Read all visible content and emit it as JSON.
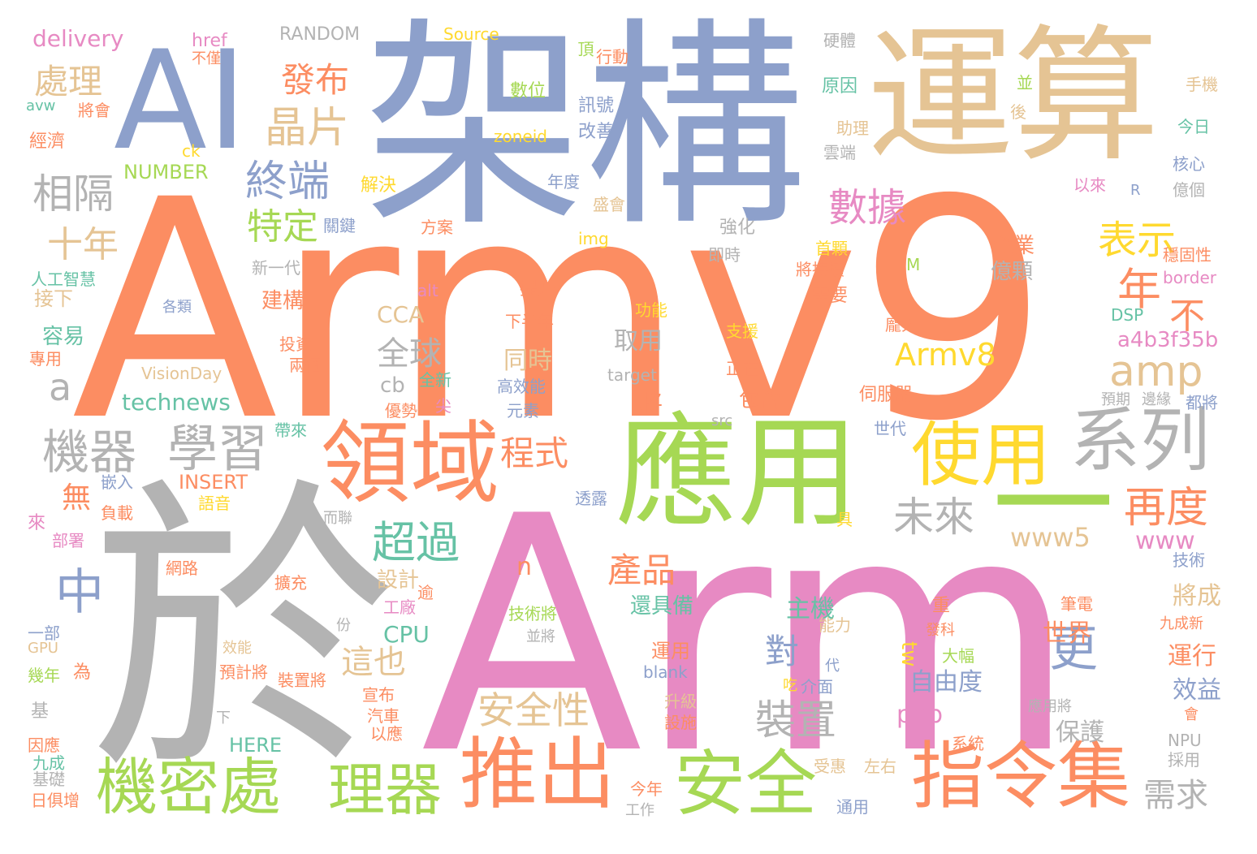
{
  "colors": {
    "orange": "#fc8d62",
    "blue": "#8da0cb",
    "pink": "#e78ac3",
    "green": "#a6d854",
    "yellow": "#ffd92f",
    "tan": "#e5c494",
    "gray": "#b3b3b3",
    "teal": "#66c2a5"
  },
  "words": [
    {
      "text": "Armv9",
      "color": "orange"
    },
    {
      "text": "Arm",
      "color": "pink"
    },
    {
      "text": "架構",
      "color": "blue"
    },
    {
      "text": "運算",
      "color": "tan"
    },
    {
      "text": "AI",
      "color": "blue"
    },
    {
      "text": "於",
      "color": "gray"
    },
    {
      "text": "應用",
      "color": "green"
    },
    {
      "text": "領域",
      "color": "orange"
    },
    {
      "text": "使用",
      "color": "yellow"
    },
    {
      "text": "系列",
      "color": "gray"
    },
    {
      "text": "一",
      "color": "green"
    },
    {
      "text": "推出",
      "color": "orange"
    },
    {
      "text": "安全",
      "color": "green"
    },
    {
      "text": "指令集",
      "color": "orange"
    },
    {
      "text": "機密處",
      "color": "green"
    },
    {
      "text": "理器",
      "color": "green"
    },
    {
      "text": "機器",
      "color": "gray"
    },
    {
      "text": "學習",
      "color": "gray"
    },
    {
      "text": "中",
      "color": "blue"
    },
    {
      "text": "數據",
      "color": "pink"
    },
    {
      "text": "終端",
      "color": "blue"
    },
    {
      "text": "晶片",
      "color": "tan"
    },
    {
      "text": "發布",
      "color": "orange"
    },
    {
      "text": "處理",
      "color": "tan"
    },
    {
      "text": "相隔",
      "color": "gray"
    },
    {
      "text": "十年",
      "color": "tan"
    },
    {
      "text": "特定",
      "color": "green"
    },
    {
      "text": "表示",
      "color": "yellow"
    },
    {
      "text": "年",
      "color": "orange"
    },
    {
      "text": "不",
      "color": "orange"
    },
    {
      "text": "amp",
      "color": "tan"
    },
    {
      "text": "Armv8",
      "color": "yellow"
    },
    {
      "text": "全球",
      "color": "gray"
    },
    {
      "text": "a",
      "color": "gray"
    },
    {
      "text": "technews",
      "color": "teal"
    },
    {
      "text": "超過",
      "color": "teal"
    },
    {
      "text": "程式",
      "color": "orange"
    },
    {
      "text": "未來",
      "color": "gray"
    },
    {
      "text": "再度",
      "color": "orange"
    },
    {
      "text": "www5",
      "color": "tan"
    },
    {
      "text": "www",
      "color": "pink"
    },
    {
      "text": "產品",
      "color": "orange"
    },
    {
      "text": "安全性",
      "color": "tan"
    },
    {
      "text": "裝置",
      "color": "gray"
    },
    {
      "text": "對",
      "color": "blue"
    },
    {
      "text": "更",
      "color": "blue"
    },
    {
      "text": "這也",
      "color": "tan"
    },
    {
      "text": "需求",
      "color": "gray"
    },
    {
      "text": "無",
      "color": "orange"
    },
    {
      "text": "CPU",
      "color": "teal"
    },
    {
      "text": "php",
      "color": "pink"
    },
    {
      "text": "tw",
      "color": "yellow"
    },
    {
      "text": "自由度",
      "color": "blue"
    },
    {
      "text": "主機",
      "color": "teal"
    },
    {
      "text": "世界",
      "color": "orange"
    },
    {
      "text": "保護",
      "color": "gray"
    },
    {
      "text": "運行",
      "color": "orange"
    },
    {
      "text": "效益",
      "color": "blue"
    },
    {
      "text": "將成",
      "color": "tan"
    },
    {
      "text": "還具備",
      "color": "teal"
    },
    {
      "text": "運用",
      "color": "orange"
    },
    {
      "text": "設計",
      "color": "tan"
    },
    {
      "text": "n",
      "color": "orange"
    },
    {
      "text": "同時",
      "color": "tan"
    },
    {
      "text": "取用",
      "color": "gray"
    },
    {
      "text": "CCA",
      "color": "tan"
    },
    {
      "text": "cb",
      "color": "gray"
    },
    {
      "text": "將",
      "color": "orange"
    },
    {
      "text": "包含",
      "color": "orange"
    },
    {
      "text": "a4b3f35b",
      "color": "pink"
    },
    {
      "text": "企業",
      "color": "orange"
    },
    {
      "text": "億顆",
      "color": "gray"
    },
    {
      "text": "容易",
      "color": "teal"
    },
    {
      "text": "接下",
      "color": "tan"
    },
    {
      "text": "建構",
      "color": "orange"
    },
    {
      "text": "delivery",
      "color": "pink"
    },
    {
      "text": "RANDOM",
      "color": "gray"
    },
    {
      "text": "Source",
      "color": "yellow"
    },
    {
      "text": "href",
      "color": "pink"
    },
    {
      "text": "不僅",
      "color": "orange"
    },
    {
      "text": "avw",
      "color": "teal"
    },
    {
      "text": "將會",
      "color": "orange"
    },
    {
      "text": "經濟",
      "color": "orange"
    },
    {
      "text": "ck",
      "color": "yellow"
    },
    {
      "text": "NUMBER",
      "color": "green"
    },
    {
      "text": "zoneid",
      "color": "yellow"
    },
    {
      "text": "數位",
      "color": "green"
    },
    {
      "text": "訊號",
      "color": "blue"
    },
    {
      "text": "改善",
      "color": "blue"
    },
    {
      "text": "頂",
      "color": "green"
    },
    {
      "text": "行動",
      "color": "orange"
    },
    {
      "text": "解決",
      "color": "yellow"
    },
    {
      "text": "年度",
      "color": "blue"
    },
    {
      "text": "關鍵",
      "color": "blue"
    },
    {
      "text": "方案",
      "color": "orange"
    },
    {
      "text": "img",
      "color": "yellow"
    },
    {
      "text": "盛會",
      "color": "tan"
    },
    {
      "text": "硬體",
      "color": "gray"
    },
    {
      "text": "原因",
      "color": "teal"
    },
    {
      "text": "助理",
      "color": "tan"
    },
    {
      "text": "雲端",
      "color": "gray"
    },
    {
      "text": "強化",
      "color": "gray"
    },
    {
      "text": "即時",
      "color": "gray"
    },
    {
      "text": "首顆",
      "color": "yellow"
    },
    {
      "text": "將持續",
      "color": "orange"
    },
    {
      "text": "需要",
      "color": "orange"
    },
    {
      "text": "手機",
      "color": "tan"
    },
    {
      "text": "後",
      "color": "tan"
    },
    {
      "text": "今日",
      "color": "teal"
    },
    {
      "text": "並",
      "color": "green"
    },
    {
      "text": "核心",
      "color": "blue"
    },
    {
      "text": "億個",
      "color": "gray"
    },
    {
      "text": "以來",
      "color": "pink"
    },
    {
      "text": "R",
      "color": "blue"
    },
    {
      "text": "穩固性",
      "color": "orange"
    },
    {
      "text": "border",
      "color": "pink"
    },
    {
      "text": "M",
      "color": "green"
    },
    {
      "text": "DSP",
      "color": "teal"
    },
    {
      "text": "龐大",
      "color": "orange"
    },
    {
      "text": "新一代",
      "color": "gray"
    },
    {
      "text": "人工智慧",
      "color": "teal"
    },
    {
      "text": "各類",
      "color": "blue"
    },
    {
      "text": "alt",
      "color": "pink"
    },
    {
      "text": "提升",
      "color": "orange"
    },
    {
      "text": "功能",
      "color": "yellow"
    },
    {
      "text": "下半年",
      "color": "orange"
    },
    {
      "text": "支援",
      "color": "yellow"
    },
    {
      "text": "正在",
      "color": "orange"
    },
    {
      "text": "伺服器",
      "color": "orange"
    },
    {
      "text": "投資",
      "color": "orange"
    },
    {
      "text": "兩個",
      "color": "orange"
    },
    {
      "text": "專用",
      "color": "orange"
    },
    {
      "text": "VisionDay",
      "color": "tan"
    },
    {
      "text": "全新",
      "color": "teal"
    },
    {
      "text": "高效能",
      "color": "blue"
    },
    {
      "text": "target",
      "color": "gray"
    },
    {
      "text": "預期",
      "color": "gray"
    },
    {
      "text": "邊緣",
      "color": "gray"
    },
    {
      "text": "都將",
      "color": "blue"
    },
    {
      "text": "優勢",
      "color": "orange"
    },
    {
      "text": "尖",
      "color": "pink"
    },
    {
      "text": "元素",
      "color": "blue"
    },
    {
      "text": "src",
      "color": "gray"
    },
    {
      "text": "世代",
      "color": "blue"
    },
    {
      "text": "帶來",
      "color": "teal"
    },
    {
      "text": "嵌入",
      "color": "blue"
    },
    {
      "text": "INSERT",
      "color": "orange"
    },
    {
      "text": "語音",
      "color": "yellow"
    },
    {
      "text": "負載",
      "color": "orange"
    },
    {
      "text": "透露",
      "color": "blue"
    },
    {
      "text": "而聯",
      "color": "gray"
    },
    {
      "text": "具",
      "color": "yellow"
    },
    {
      "text": "來",
      "color": "pink"
    },
    {
      "text": "部署",
      "color": "pink"
    },
    {
      "text": "網路",
      "color": "orange"
    },
    {
      "text": "擴充",
      "color": "orange"
    },
    {
      "text": "工廠",
      "color": "pink"
    },
    {
      "text": "逾",
      "color": "orange"
    },
    {
      "text": "技術將",
      "color": "green"
    },
    {
      "text": "並將",
      "color": "gray"
    },
    {
      "text": "重",
      "color": "orange"
    },
    {
      "text": "能力",
      "color": "tan"
    },
    {
      "text": "發科",
      "color": "orange"
    },
    {
      "text": "大幅",
      "color": "green"
    },
    {
      "text": "筆電",
      "color": "orange"
    },
    {
      "text": "九成新",
      "color": "orange"
    },
    {
      "text": "技術",
      "color": "blue"
    },
    {
      "text": "一部",
      "color": "blue"
    },
    {
      "text": "份",
      "color": "gray"
    },
    {
      "text": "GPU",
      "color": "tan"
    },
    {
      "text": "幾年",
      "color": "green"
    },
    {
      "text": "為",
      "color": "orange"
    },
    {
      "text": "效能",
      "color": "tan"
    },
    {
      "text": "預計將",
      "color": "orange"
    },
    {
      "text": "裝置將",
      "color": "orange"
    },
    {
      "text": "宣布",
      "color": "orange"
    },
    {
      "text": "代",
      "color": "blue"
    },
    {
      "text": "介面",
      "color": "blue"
    },
    {
      "text": "吃",
      "color": "yellow"
    },
    {
      "text": "blank",
      "color": "blue"
    },
    {
      "text": "升級",
      "color": "tan"
    },
    {
      "text": "設施",
      "color": "orange"
    },
    {
      "text": "汽車",
      "color": "orange"
    },
    {
      "text": "以應",
      "color": "orange"
    },
    {
      "text": "基",
      "color": "gray"
    },
    {
      "text": "下",
      "color": "gray"
    },
    {
      "text": "應用將",
      "color": "gray"
    },
    {
      "text": "會",
      "color": "orange"
    },
    {
      "text": "因應",
      "color": "orange"
    },
    {
      "text": "HERE",
      "color": "teal"
    },
    {
      "text": "系統",
      "color": "orange"
    },
    {
      "text": "NPU",
      "color": "gray"
    },
    {
      "text": "採用",
      "color": "gray"
    },
    {
      "text": "九成",
      "color": "teal"
    },
    {
      "text": "基礎",
      "color": "gray"
    },
    {
      "text": "日俱增",
      "color": "orange"
    },
    {
      "text": "受惠",
      "color": "tan"
    },
    {
      "text": "左右",
      "color": "tan"
    },
    {
      "text": "今年",
      "color": "orange"
    },
    {
      "text": "工作",
      "color": "gray"
    },
    {
      "text": "通用",
      "color": "blue"
    }
  ]
}
